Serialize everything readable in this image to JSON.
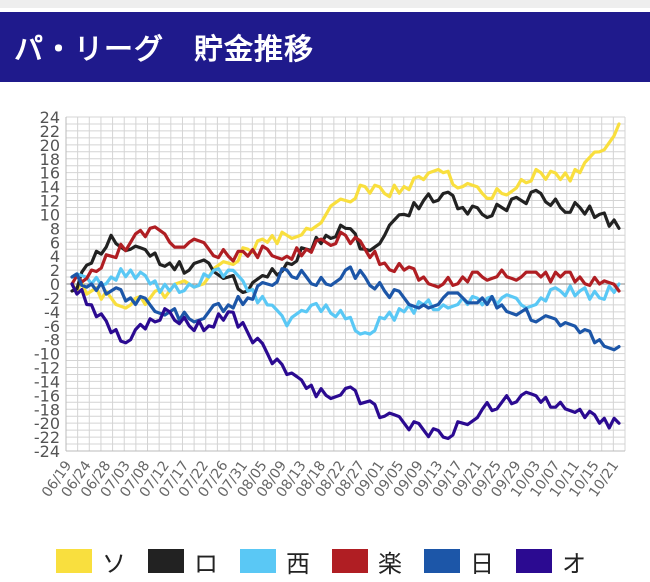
{
  "header": {
    "title": "パ・リーグ　貯金推移"
  },
  "legend": [
    {
      "label": "ソ",
      "color": "#f9df3e"
    },
    {
      "label": "ロ",
      "color": "#222222"
    },
    {
      "label": "西",
      "color": "#5ac8f5"
    },
    {
      "label": "楽",
      "color": "#b01e23"
    },
    {
      "label": "日",
      "color": "#1c56a8"
    },
    {
      "label": "オ",
      "color": "#2b0a91"
    }
  ],
  "chart_data": {
    "type": "line",
    "title": "",
    "xlabel": "",
    "ylabel": "",
    "ylim": [
      -24,
      24
    ],
    "yticks": [
      "24",
      "22",
      "20",
      "18",
      "16",
      "14",
      "12",
      "10",
      "8",
      "6",
      "4",
      "2",
      "0",
      "-2",
      "-4",
      "-6",
      "-8",
      "-10",
      "-12",
      "-14",
      "-16",
      "-18",
      "-20",
      "-22",
      "-24"
    ],
    "x_tick_labels": [
      "06/19",
      "06/24",
      "06/28",
      "07/03",
      "07/08",
      "07/12",
      "07/17",
      "07/22",
      "07/26",
      "07/31",
      "08/05",
      "08/09",
      "08/13",
      "08/18",
      "08/22",
      "08/27",
      "09/01",
      "09/05",
      "09/09",
      "09/13",
      "09/17",
      "09/21",
      "09/25",
      "09/29",
      "10/03",
      "10/07",
      "10/11",
      "10/15",
      "10/21"
    ],
    "grid": true,
    "legend_position": "bottom",
    "series": [
      {
        "name": "ソ",
        "color": "#f9df3e",
        "values": [
          0,
          -1,
          -2,
          -3,
          -2,
          -1,
          0,
          1,
          3,
          5,
          6,
          7,
          8,
          10,
          12,
          14,
          13,
          14,
          15,
          16,
          14,
          13,
          13,
          15,
          16,
          15,
          16,
          19,
          23
        ]
      },
      {
        "name": "ロ",
        "color": "#222222",
        "values": [
          -1,
          3,
          7,
          5,
          4,
          3,
          2,
          3,
          1,
          -1,
          1,
          3,
          5,
          7,
          8,
          5,
          7,
          10,
          12,
          13,
          11,
          10,
          11,
          12,
          13,
          11,
          11,
          10,
          8
        ]
      },
      {
        "name": "西",
        "color": "#5ac8f5",
        "values": [
          1,
          0,
          1,
          2,
          0,
          -1,
          0,
          1,
          2,
          -1,
          -3,
          -6,
          -4,
          -3,
          -5,
          -7,
          -5,
          -4,
          -3,
          -3,
          -2,
          -3,
          -2,
          -3,
          -2,
          -1,
          -1,
          -2,
          0
        ]
      },
      {
        "name": "楽",
        "color": "#b01e23",
        "values": [
          0,
          2,
          4,
          6,
          8,
          6,
          6,
          5,
          4,
          4,
          5,
          4,
          5,
          6,
          7,
          5,
          3,
          2,
          1,
          0,
          1,
          1,
          2,
          1,
          1,
          1,
          1,
          0,
          -1
        ]
      },
      {
        "name": "日",
        "color": "#1c56a8",
        "values": [
          1,
          0,
          -1,
          -2,
          -3,
          -4,
          -5,
          -4,
          -3,
          -2,
          0,
          2,
          1,
          0,
          2,
          1,
          -1,
          -2,
          -3,
          -2,
          -2,
          -2,
          -3,
          -4,
          -5,
          -6,
          -7,
          -8,
          -9
        ]
      },
      {
        "name": "オ",
        "color": "#2b0a91",
        "values": [
          0,
          -3,
          -7,
          -8,
          -5,
          -4,
          -6,
          -6,
          -4,
          -7,
          -10,
          -13,
          -15,
          -16,
          -15,
          -17,
          -19,
          -20,
          -21,
          -22,
          -20,
          -18,
          -17,
          -16,
          -17,
          -17,
          -18,
          -20,
          -20
        ]
      }
    ]
  }
}
